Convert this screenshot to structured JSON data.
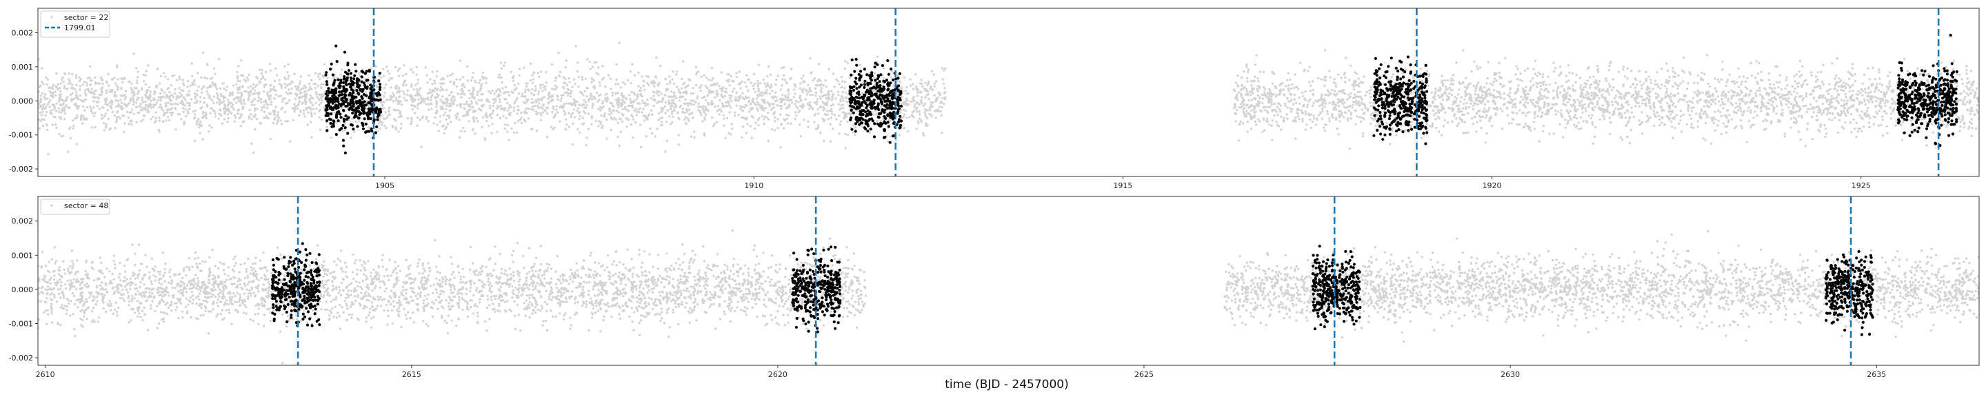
{
  "figure": {
    "xlabel": "time (BJD - 2457000)"
  },
  "chart_data": [
    {
      "type": "scatter",
      "xlim": [
        1900.3,
        1926.6
      ],
      "ylim": [
        -0.00222,
        0.00272
      ],
      "xticks": [
        1905,
        1910,
        1915,
        1920,
        1925
      ],
      "xtick_labels": [
        "1905",
        "1910",
        "1915",
        "1920",
        "1925"
      ],
      "yticks": [
        -0.002,
        -0.001,
        0.0,
        0.001,
        0.002
      ],
      "ytick_labels": [
        "-0.002",
        "-0.001",
        "0.000",
        "0.001",
        "0.002"
      ],
      "legend_position": "top-left",
      "legend": [
        "sector = 22",
        "1799.01"
      ],
      "series": [
        {
          "name": "sector = 22",
          "role": "background",
          "color": "#d3d3d3",
          "segments": [
            [
              1900.3,
              1912.6
            ],
            [
              1916.5,
              1926.6
            ]
          ],
          "scatter": 0.00045
        },
        {
          "name": "in-transit",
          "role": "highlight",
          "color": "#000000",
          "windows": [
            [
              1904.2,
              1904.95
            ],
            [
              1911.3,
              1912.0
            ],
            [
              1918.4,
              1919.12
            ],
            [
              1925.5,
              1926.3
            ]
          ],
          "scatter": 0.00045
        },
        {
          "name": "1799.01",
          "role": "transit-lines",
          "color": "#1f77b4",
          "linestyle": "dashed",
          "x": [
            1904.85,
            1911.92,
            1918.98,
            1926.05
          ]
        }
      ]
    },
    {
      "type": "scatter",
      "xlim": [
        2609.9,
        2636.4
      ],
      "ylim": [
        -0.00222,
        0.00272
      ],
      "xticks": [
        2610,
        2615,
        2620,
        2625,
        2630,
        2635
      ],
      "xtick_labels": [
        "2610",
        "2615",
        "2620",
        "2625",
        "2630",
        "2635"
      ],
      "yticks": [
        -0.002,
        -0.001,
        0.0,
        0.001,
        0.002
      ],
      "ytick_labels": [
        "-0.002",
        "-0.001",
        "0.000",
        "0.001",
        "0.002"
      ],
      "legend_position": "top-left",
      "legend": [
        "sector = 48"
      ],
      "series": [
        {
          "name": "sector = 48",
          "role": "background",
          "color": "#d3d3d3",
          "segments": [
            [
              2609.9,
              2621.2
            ],
            [
              2626.1,
              2636.4
            ]
          ],
          "scatter": 0.00045
        },
        {
          "name": "in-transit",
          "role": "highlight",
          "color": "#000000",
          "windows": [
            [
              2613.1,
              2613.75
            ],
            [
              2620.2,
              2620.85
            ],
            [
              2627.3,
              2627.95
            ],
            [
              2634.3,
              2634.95
            ]
          ],
          "scatter": 0.00045
        },
        {
          "name": "transit-lines",
          "role": "transit-lines",
          "color": "#1f77b4",
          "linestyle": "dashed",
          "x": [
            2613.45,
            2620.52,
            2627.6,
            2634.65
          ]
        }
      ]
    }
  ]
}
